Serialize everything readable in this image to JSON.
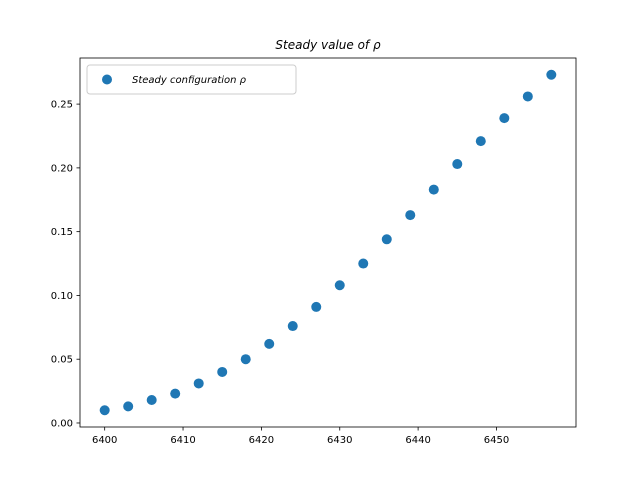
{
  "chart_data": {
    "type": "scatter",
    "title": "Steady value of ρ",
    "xlabel": "",
    "ylabel": "",
    "xlim": [
      6396.85,
      6460.15
    ],
    "ylim": [
      -0.00315,
      0.28615
    ],
    "x_ticks": [
      6400,
      6410,
      6420,
      6430,
      6440,
      6450
    ],
    "y_ticks": [
      0.0,
      0.05,
      0.1,
      0.15,
      0.2,
      0.25
    ],
    "y_tick_labels": [
      "0.00",
      "0.05",
      "0.10",
      "0.15",
      "0.20",
      "0.25"
    ],
    "grid": false,
    "legend_position": "top-left",
    "series": [
      {
        "name": "Steady configuration ρ",
        "color": "#1f77b4",
        "marker": "circle",
        "x": [
          6400,
          6403,
          6406,
          6409,
          6412,
          6415,
          6418,
          6421,
          6424,
          6427,
          6430,
          6433,
          6436,
          6439,
          6442,
          6445,
          6448,
          6451,
          6454,
          6457
        ],
        "y": [
          0.01,
          0.013,
          0.018,
          0.023,
          0.031,
          0.04,
          0.05,
          0.062,
          0.076,
          0.091,
          0.108,
          0.125,
          0.144,
          0.163,
          0.183,
          0.203,
          0.221,
          0.239,
          0.256,
          0.273
        ]
      }
    ]
  }
}
